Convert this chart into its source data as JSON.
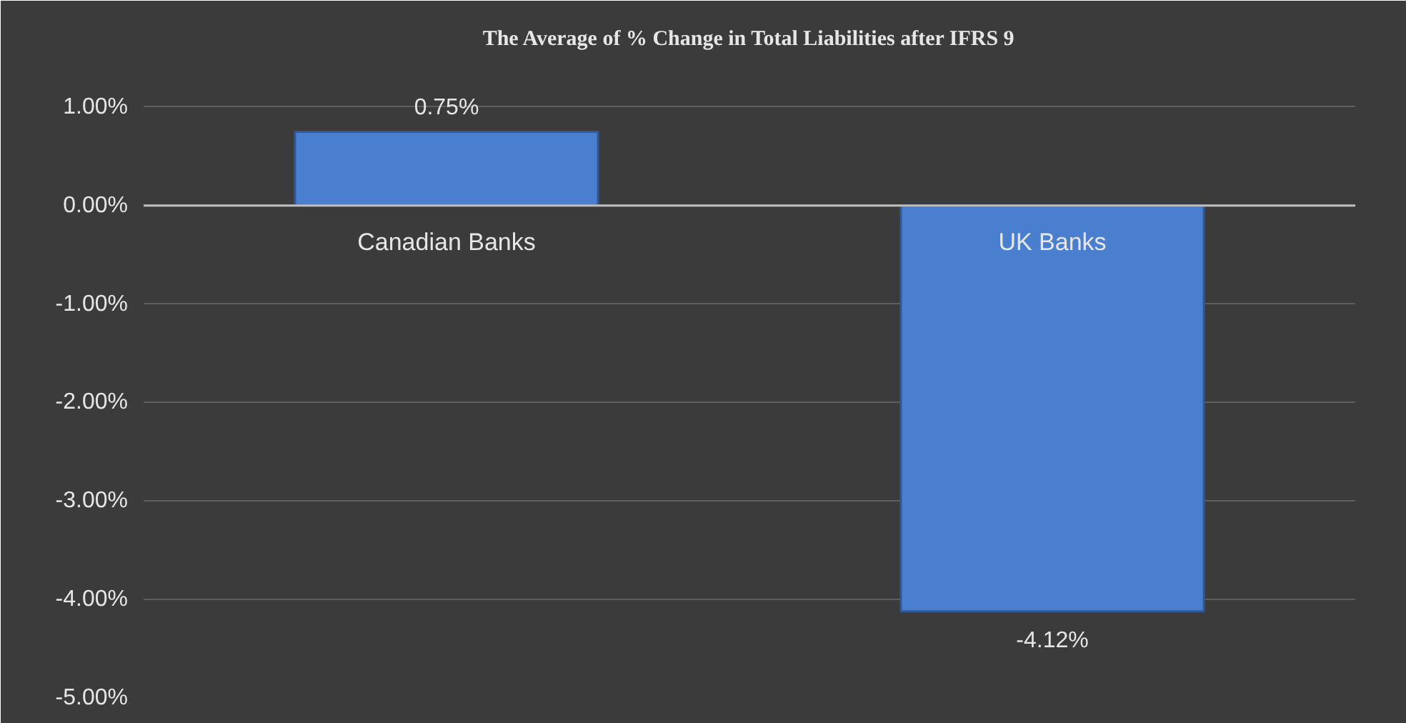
{
  "chart_data": {
    "type": "bar",
    "title": "The Average of % Change in Total Liabilities after IFRS 9",
    "categories": [
      "Canadian Banks",
      "UK Banks"
    ],
    "values": [
      0.75,
      -4.12
    ],
    "value_labels": [
      "0.75%",
      "-4.12%"
    ],
    "color": "#4a7fcf",
    "ylim": [
      -5,
      1.5
    ],
    "yticks": [
      {
        "value": 1,
        "label": "1.00%"
      },
      {
        "value": 0,
        "label": "0.00%"
      },
      {
        "value": -1,
        "label": "-1.00%"
      },
      {
        "value": -2,
        "label": "-2.00%"
      },
      {
        "value": -3,
        "label": "-3.00%"
      },
      {
        "value": -4,
        "label": "-4.00%"
      },
      {
        "value": -5,
        "label": "-5.00%"
      }
    ],
    "grid": "y"
  }
}
